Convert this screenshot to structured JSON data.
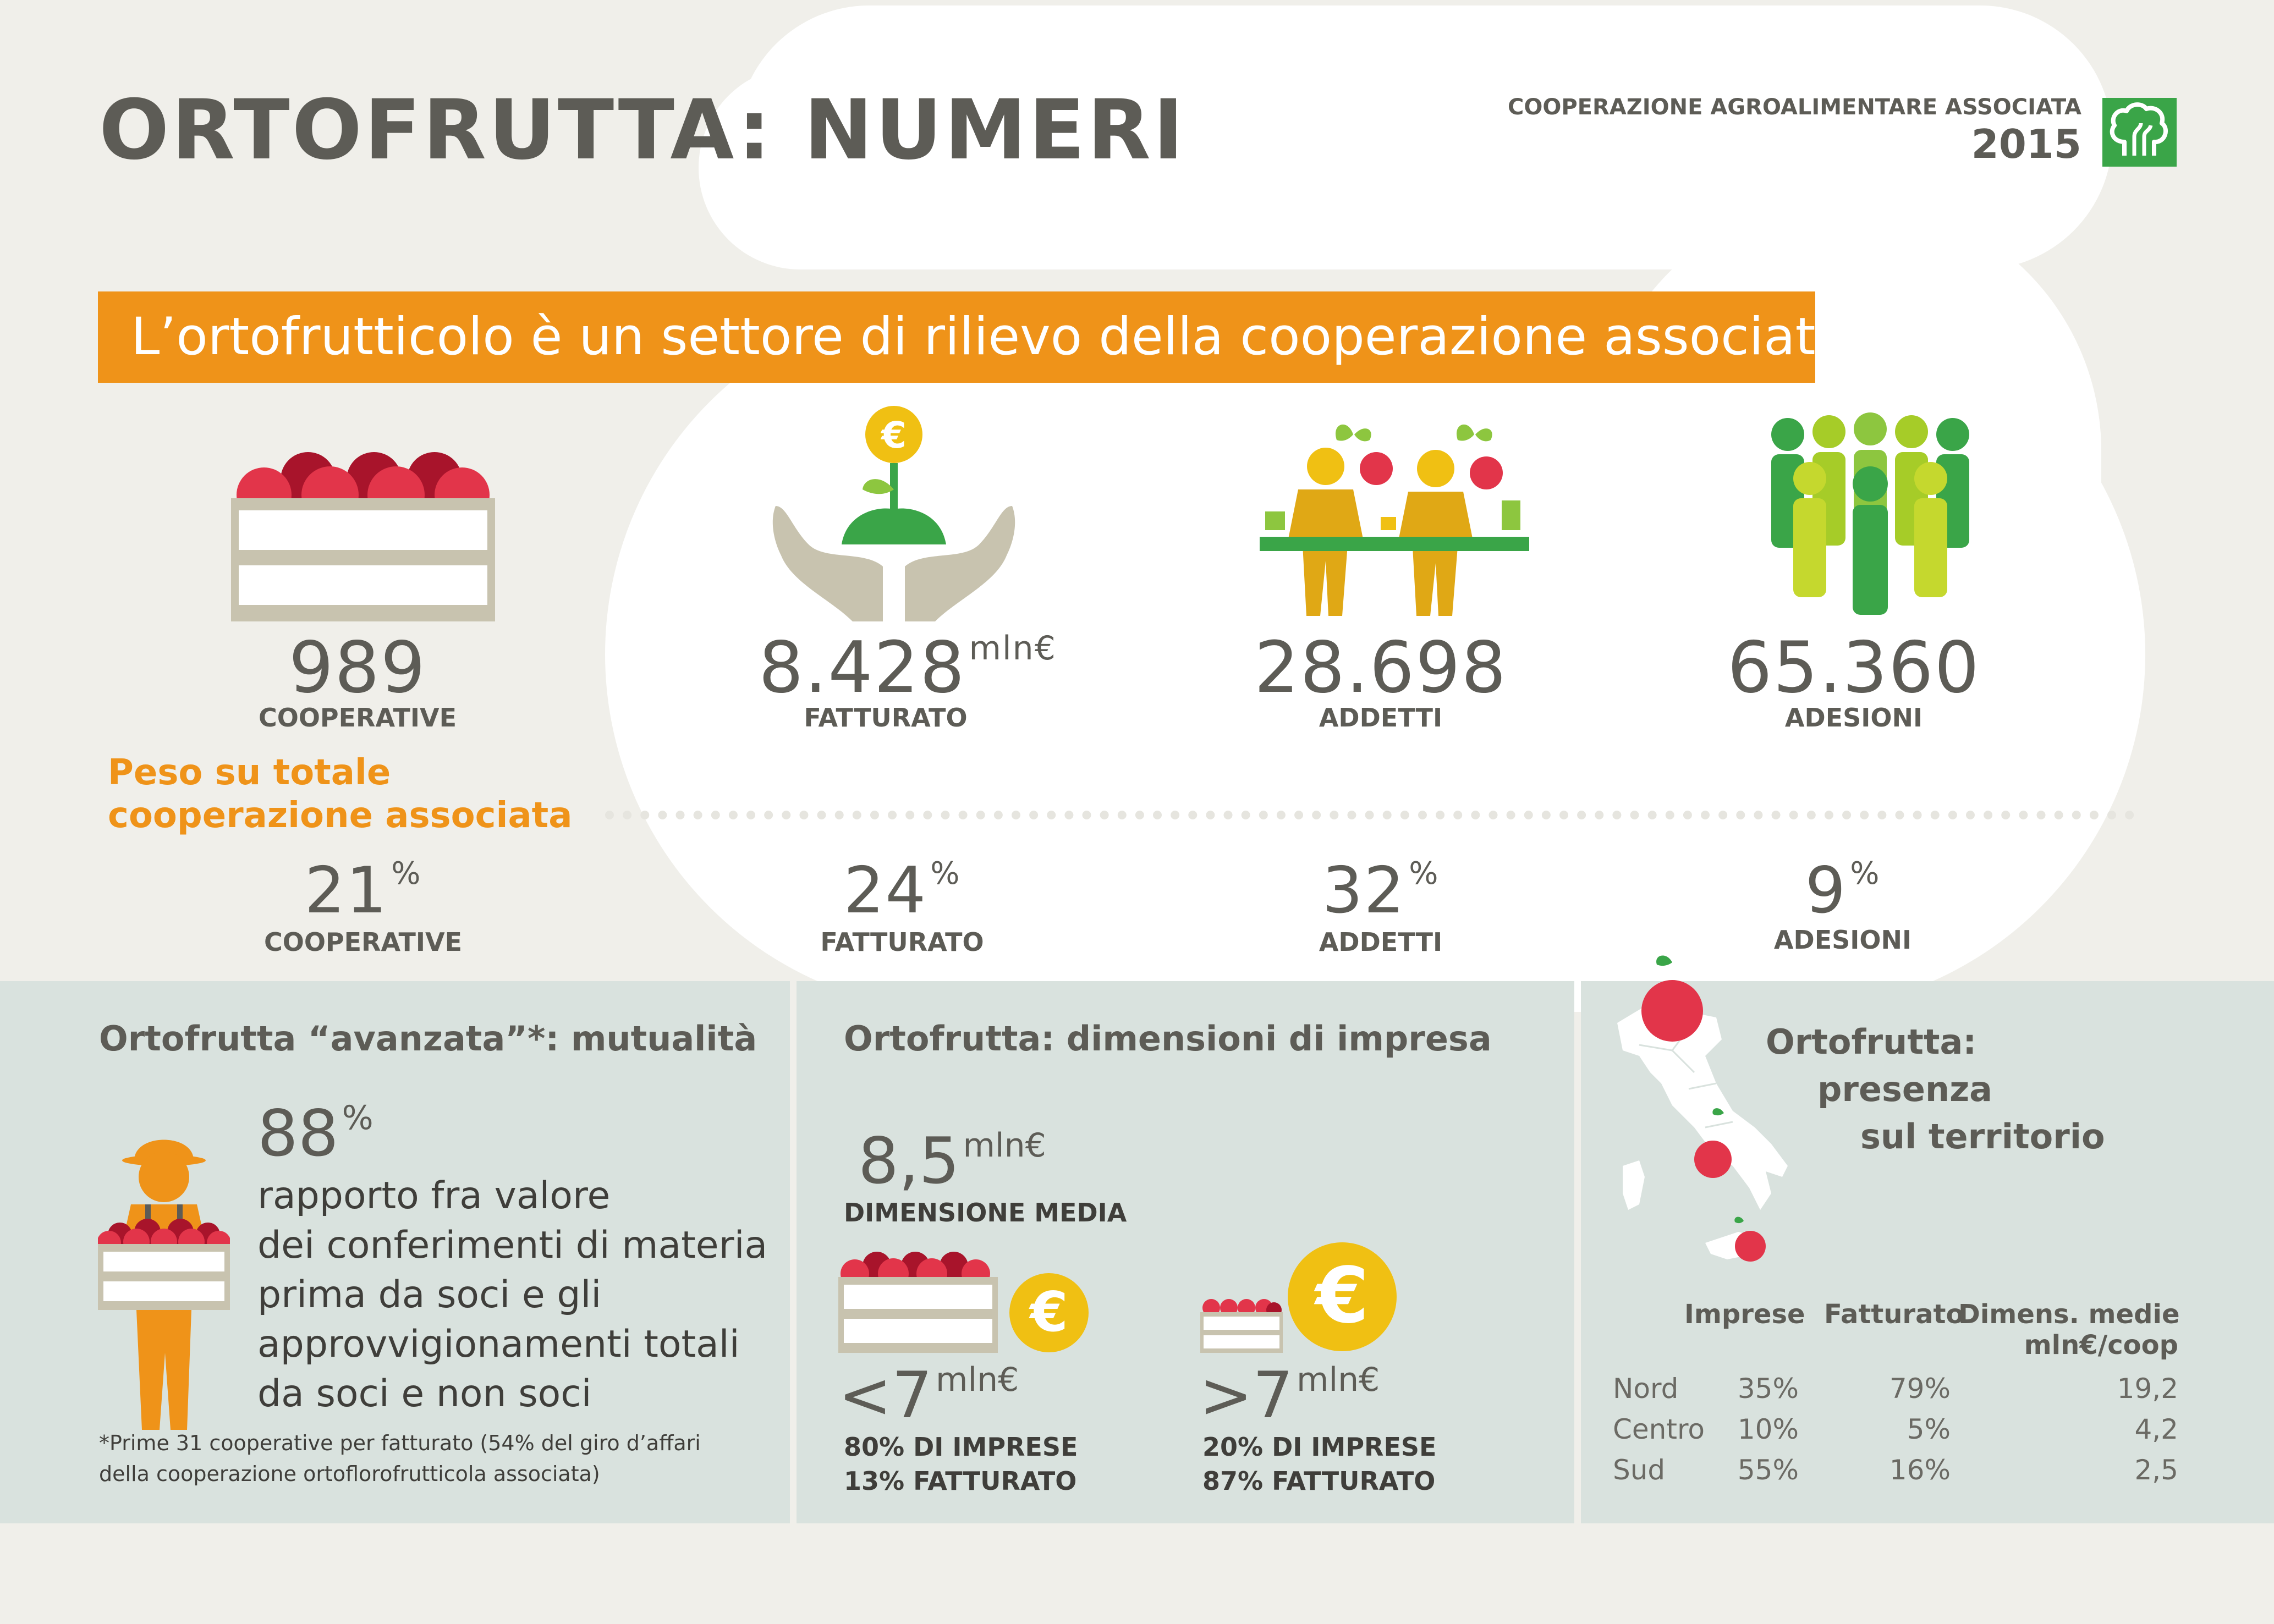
{
  "header": {
    "title": "ORTOFRUTTA: NUMERI",
    "org": "COOPERAZIONE AGROALIMENTARE ASSOCIATA",
    "year": "2015"
  },
  "banner": "L’ortofrutticolo è un settore di rilievo della cooperazione associata",
  "stats": [
    {
      "value": "989",
      "unit": "",
      "label": "COOPERATIVE",
      "icon": "fruit-crate-icon"
    },
    {
      "value": "8.428",
      "unit": "mln€",
      "label": "FATTURATO",
      "icon": "hands-plant-euro-icon"
    },
    {
      "value": "28.698",
      "unit": "",
      "label": "ADDETTI",
      "icon": "workers-icon"
    },
    {
      "value": "65.360",
      "unit": "",
      "label": "ADESIONI",
      "icon": "members-group-icon"
    }
  ],
  "weight": {
    "heading_line1": "Peso su totale",
    "heading_line2": "cooperazione associata",
    "items": [
      {
        "value": "21",
        "unit": "%",
        "label": "COOPERATIVE"
      },
      {
        "value": "24",
        "unit": "%",
        "label": "FATTURATO"
      },
      {
        "value": "32",
        "unit": "%",
        "label": "ADDETTI"
      },
      {
        "value": "9",
        "unit": "%",
        "label": "ADESIONI"
      }
    ]
  },
  "mutualita": {
    "title": "Ortofrutta “avanzata”*: mutualità",
    "value": "88",
    "unit": "%",
    "lines": [
      "rapporto fra valore",
      "dei conferimenti di materia",
      "prima da soci e gli",
      "approvvigionamenti totali",
      "da soci e non soci"
    ],
    "note_line1": "*Prime 31 cooperative per fatturato (54% del giro d’affari",
    "note_line2": "della cooperazione ortoflorofrutticola associata)"
  },
  "dimensioni": {
    "title": "Ortofrutta: dimensioni di impresa",
    "media_value": "8,5",
    "media_unit": "mln€",
    "media_label": "DIMENSIONE MEDIA",
    "small": {
      "sign": "<",
      "value": "7",
      "unit": "mln€",
      "line1": "80% DI IMPRESE",
      "line2": "13% FATTURATO"
    },
    "large": {
      "sign": ">",
      "value": "7",
      "unit": "mln€",
      "line1": "20% DI IMPRESE",
      "line2": "87% FATTURATO"
    },
    "euro_symbol": "€"
  },
  "territorio": {
    "title_line1": "Ortofrutta:",
    "title_line2": "presenza",
    "title_line3": "sul  territorio",
    "columns": [
      "Imprese",
      "Fatturato",
      "Dimens. medie"
    ],
    "columns_sub": "mln€/coop",
    "rows": [
      {
        "area": "Nord",
        "imprese": "35%",
        "fatturato": "79%",
        "dimensione": "19,2"
      },
      {
        "area": "Centro",
        "imprese": "10%",
        "fatturato": "5%",
        "dimensione": "4,2"
      },
      {
        "area": "Sud",
        "imprese": "55%",
        "fatturato": "16%",
        "dimensione": "2,5"
      }
    ]
  },
  "colors": {
    "orange": "#ef9319",
    "gray_text": "#5d5c56",
    "panel": "#d9e2de",
    "apple_red": "#e2354a",
    "leaf_green": "#8dc63f",
    "logo_green": "#3aa548",
    "coin_yellow": "#f0c013"
  }
}
